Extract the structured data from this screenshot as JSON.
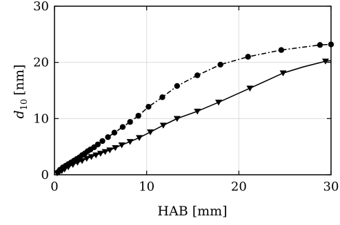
{
  "chart_data": {
    "type": "line",
    "xlabel": "HAB [mm]",
    "ylabel_main": "d",
    "ylabel_sub": "10",
    "ylabel_unit": "[nm]",
    "xlim": [
      0,
      30
    ],
    "ylim": [
      0,
      30
    ],
    "xticks": [
      0,
      10,
      20,
      30
    ],
    "yticks": [
      0,
      10,
      20,
      30
    ],
    "grid": true,
    "series": [
      {
        "line_style": "dash-dot",
        "marker": "circle",
        "x": [
          0.4,
          0.6,
          0.9,
          1.2,
          1.5,
          1.8,
          2.1,
          2.4,
          2.7,
          3.0,
          3.3,
          3.6,
          3.9,
          4.3,
          4.7,
          5.2,
          5.8,
          6.5,
          7.4,
          8.2,
          9.1,
          10.2,
          11.7,
          13.3,
          15.5,
          18.0,
          21.0,
          24.6,
          28.8,
          30.0
        ],
        "y": [
          0.5,
          0.9,
          1.3,
          1.6,
          1.9,
          2.2,
          2.5,
          2.8,
          3.1,
          3.5,
          3.8,
          4.2,
          4.5,
          4.9,
          5.4,
          6.0,
          6.7,
          7.5,
          8.5,
          9.4,
          10.5,
          12.1,
          13.8,
          15.8,
          17.7,
          19.6,
          21.0,
          22.2,
          23.1,
          23.2
        ]
      },
      {
        "line_style": "solid",
        "marker": "triangle-down",
        "x": [
          0.3,
          0.8,
          1.1,
          1.5,
          2.0,
          2.5,
          3.0,
          3.5,
          4.0,
          4.5,
          5.0,
          5.5,
          6.0,
          6.6,
          7.3,
          8.2,
          9.2,
          10.4,
          11.8,
          13.3,
          15.5,
          17.8,
          21.2,
          24.8,
          27.0,
          29.4,
          30.0
        ],
        "markers_x": [
          0.3,
          0.8,
          1.1,
          1.5,
          2.0,
          2.5,
          3.0,
          3.5,
          4.0,
          4.5,
          5.0,
          5.5,
          6.0,
          6.6,
          7.3,
          8.2,
          9.2,
          10.4,
          11.8,
          13.3,
          15.5,
          17.8,
          21.2,
          24.8,
          29.4
        ],
        "y": [
          0.3,
          0.7,
          1.0,
          1.4,
          1.8,
          2.2,
          2.5,
          2.9,
          3.2,
          3.5,
          3.8,
          4.1,
          4.4,
          4.8,
          5.3,
          5.9,
          6.6,
          7.6,
          8.8,
          10.0,
          11.3,
          12.9,
          15.4,
          18.1,
          19.2,
          20.2,
          20.3
        ],
        "markers_y": [
          0.3,
          0.7,
          1.0,
          1.4,
          1.8,
          2.2,
          2.5,
          2.9,
          3.2,
          3.5,
          3.8,
          4.1,
          4.4,
          4.8,
          5.3,
          5.9,
          6.6,
          7.6,
          8.8,
          10.0,
          11.3,
          12.9,
          15.4,
          18.1,
          20.2
        ]
      }
    ]
  }
}
